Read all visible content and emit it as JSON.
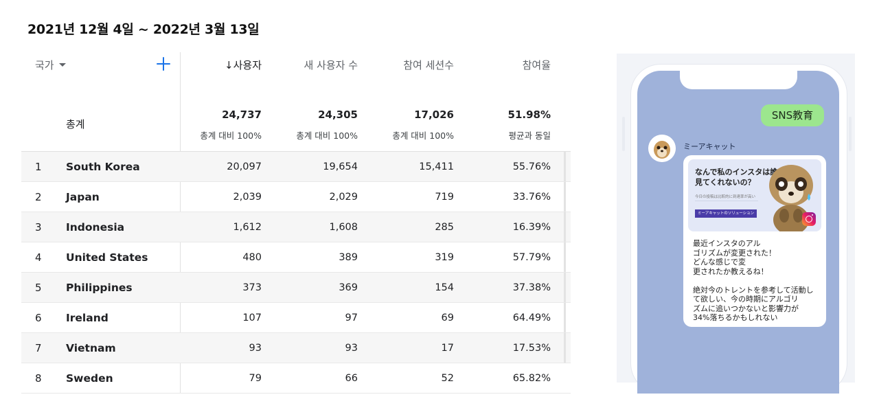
{
  "date_range": "2021년 12월 4일 ~ 2022년 3월 13일",
  "table": {
    "dimension_label": "국가",
    "add_dimension_icon": "plus-icon",
    "columns": [
      {
        "label": "↓사용자",
        "sorted": true
      },
      {
        "label": "새 사용자 수"
      },
      {
        "label": "참여 세션수"
      },
      {
        "label": "참여율"
      }
    ],
    "totals": {
      "label": "총계",
      "values": [
        "24,737",
        "24,305",
        "17,026",
        "51.98%"
      ],
      "subs": [
        "총계 대비 100%",
        "총계 대비 100%",
        "총계 대비 100%",
        "평균과 동일"
      ]
    },
    "rows": [
      {
        "rank": "1",
        "country": "South Korea",
        "users": "20,097",
        "new_users": "19,654",
        "sessions": "15,411",
        "rate": "55.76%"
      },
      {
        "rank": "2",
        "country": "Japan",
        "users": "2,039",
        "new_users": "2,029",
        "sessions": "719",
        "rate": "33.76%"
      },
      {
        "rank": "3",
        "country": "Indonesia",
        "users": "1,612",
        "new_users": "1,608",
        "sessions": "285",
        "rate": "16.39%"
      },
      {
        "rank": "4",
        "country": "United States",
        "users": "480",
        "new_users": "389",
        "sessions": "319",
        "rate": "57.79%"
      },
      {
        "rank": "5",
        "country": "Philippines",
        "users": "373",
        "new_users": "369",
        "sessions": "154",
        "rate": "37.38%"
      },
      {
        "rank": "6",
        "country": "Ireland",
        "users": "107",
        "new_users": "97",
        "sessions": "69",
        "rate": "64.49%"
      },
      {
        "rank": "7",
        "country": "Vietnam",
        "users": "93",
        "new_users": "93",
        "sessions": "17",
        "rate": "17.53%"
      },
      {
        "rank": "8",
        "country": "Sweden",
        "users": "79",
        "new_users": "66",
        "sessions": "52",
        "rate": "65.82%"
      }
    ]
  },
  "phone": {
    "sns_bubble": "SNS教育",
    "sender_name": "ミーアキャット",
    "promo_title": "なんで私のインスタは誰も\n見てくれないの？",
    "promo_sub": "今日の投稿は比較的に到達率が高い",
    "promo_band": "ミーアキャットのソリューション",
    "message": "最近インスタのアル\nゴリズムが変更された！\nどんな感じで変\n更されたか教えるね！\n\n絶対今のトレントを参考して活動し\nて欲しい、今の時期にアルゴリ\nズムに追いつかないと影響力が\n34%落ちるかもしれない",
    "colors": {
      "screen": "#9fb2da",
      "bubble": "#9ce68e"
    }
  }
}
